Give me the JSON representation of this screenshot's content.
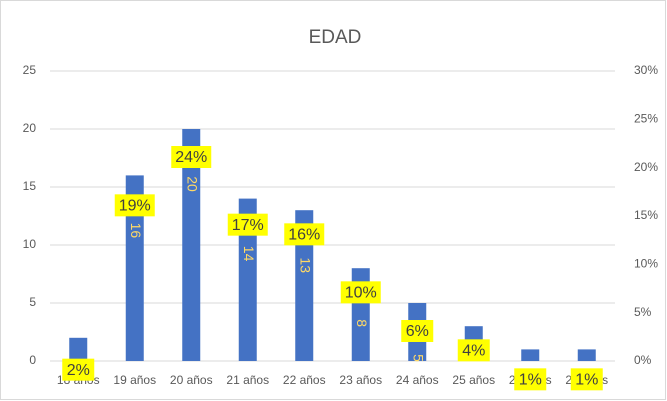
{
  "chart_data": {
    "type": "bar",
    "title": "EDAD",
    "categories": [
      "18 años",
      "19 años",
      "20 años",
      "21 años",
      "22 años",
      "23 años",
      "24 años",
      "25 años",
      "26 años",
      "27 años"
    ],
    "series": [
      {
        "color": "#4472c4",
        "values": [
          2,
          16,
          20,
          14,
          13,
          8,
          5,
          3,
          1,
          1
        ]
      },
      {
        "axis": "y2",
        "color": "#ffff00",
        "values": [
          2,
          19,
          24,
          17,
          16,
          10,
          6,
          4,
          1,
          1
        ],
        "value_labels": [
          "2%",
          "19%",
          "24%",
          "17%",
          "16%",
          "10%",
          "6%",
          "4%",
          "1%",
          "1%"
        ]
      }
    ],
    "ylim": [
      0,
      25
    ],
    "yticks": [
      0,
      5,
      10,
      15,
      20,
      25
    ],
    "y2lim": [
      0,
      30
    ],
    "y2ticks": [
      {
        "value": 0,
        "label": "0%"
      },
      {
        "value": 5,
        "label": "5%"
      },
      {
        "value": 10,
        "label": "10%"
      },
      {
        "value": 15,
        "label": "15%"
      },
      {
        "value": 20,
        "label": "20%"
      },
      {
        "value": 25,
        "label": "25%"
      },
      {
        "value": 30,
        "label": "30%"
      }
    ],
    "grid": true
  }
}
